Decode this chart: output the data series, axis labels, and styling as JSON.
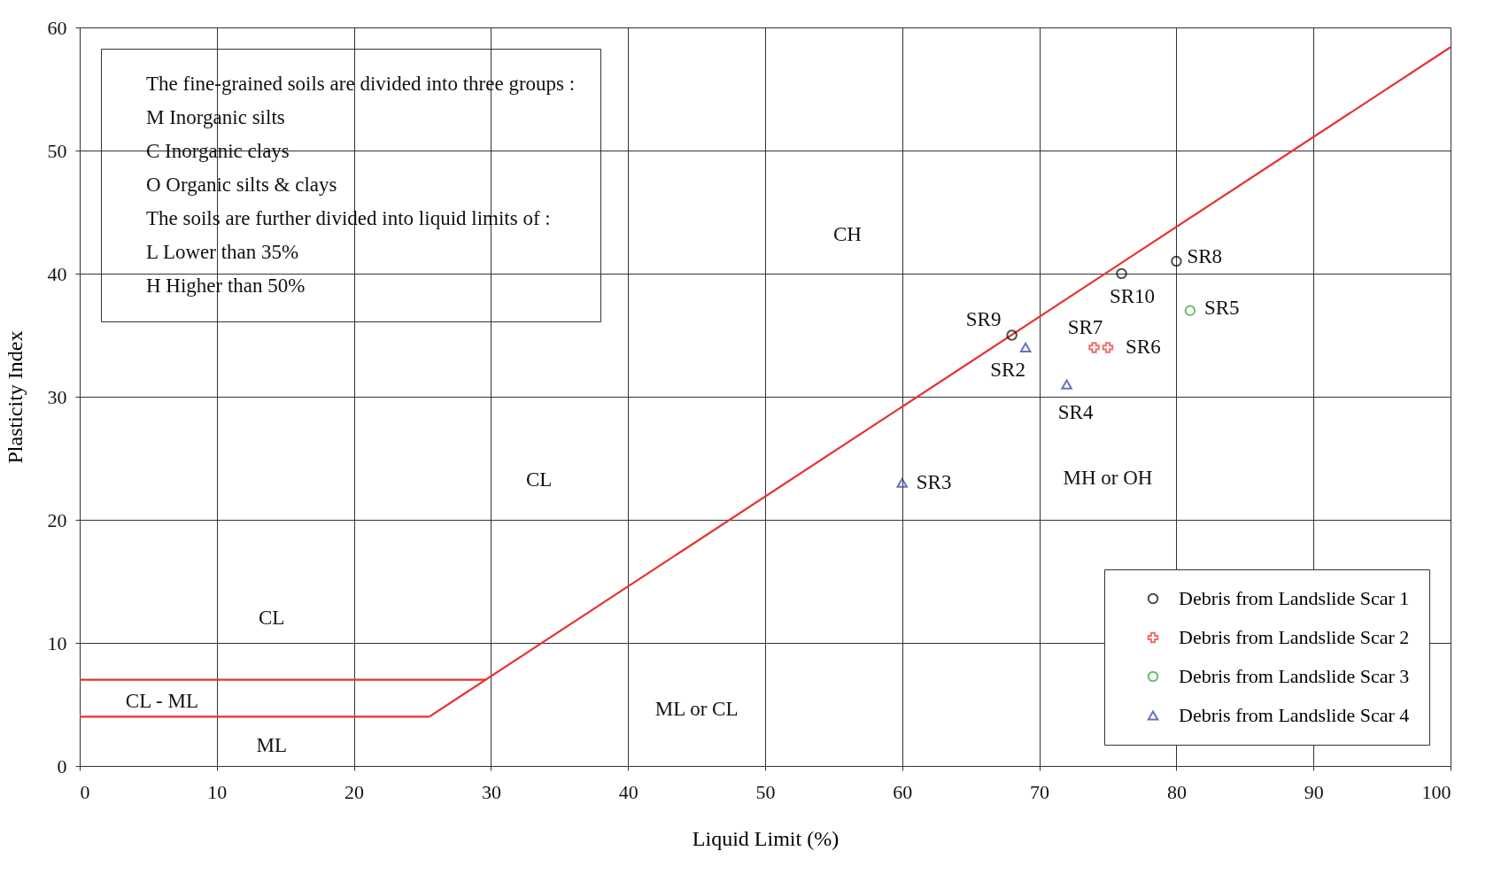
{
  "chart_data": {
    "type": "scatter",
    "xlabel": "Liquid Limit (%)",
    "ylabel": "Plasticity Index",
    "xlim": [
      0,
      100
    ],
    "ylim": [
      0,
      60
    ],
    "xticks": [
      0,
      10,
      20,
      30,
      40,
      50,
      60,
      70,
      80,
      90,
      100
    ],
    "yticks": [
      0,
      10,
      20,
      30,
      40,
      50,
      60
    ],
    "grid": true,
    "legend": "bottom right",
    "series": [
      {
        "name": "Debris from Landslide Scar 1",
        "color": "#000000",
        "marker": "circle",
        "x": [
          68,
          76,
          80
        ],
        "values": [
          35,
          40,
          41
        ],
        "value_labels": [
          "SR9",
          "SR10",
          "SR8"
        ]
      },
      {
        "name": "Debris from Landslide Scar 2",
        "color": "#e8322c",
        "marker": "cross",
        "x": [
          74,
          75
        ],
        "values": [
          34,
          34
        ],
        "value_labels": [
          "SR7",
          "SR6"
        ]
      },
      {
        "name": "Debris from Landslide Scar 3",
        "color": "#2ca02c",
        "marker": "circle",
        "x": [
          81
        ],
        "values": [
          37
        ],
        "value_labels": [
          "SR5"
        ]
      },
      {
        "name": "Debris from Landslide Scar 4",
        "color": "#2b35a8",
        "marker": "triangle",
        "x": [
          69,
          72,
          60
        ],
        "values": [
          34,
          31,
          23
        ],
        "value_labels": [
          "SR2",
          "SR4",
          "SR3"
        ]
      },
      {
        "type": "line",
        "color": "#e8322c",
        "x": [
          25.5,
          100
        ],
        "values": [
          4,
          58.4
        ]
      },
      {
        "type": "line",
        "color": "#e8322c",
        "x": [
          0,
          29.6
        ],
        "values": [
          7,
          7
        ]
      },
      {
        "type": "line",
        "color": "#e8322c",
        "x": [
          0,
          25.5
        ],
        "values": [
          4,
          4
        ]
      }
    ],
    "annotations": [
      "The fine-grained soils are divided into three groups :",
      "M   Inorganic silts",
      "C   Inorganic clays",
      "O   Organic silts & clays",
      "The soils are further divided into liquid limits of :",
      "L   Lower than 35%",
      "H   Higher than 50%",
      "CH",
      "CL",
      "CL",
      "CL - ML",
      "ML",
      "ML or CL",
      "MH or OH"
    ]
  }
}
